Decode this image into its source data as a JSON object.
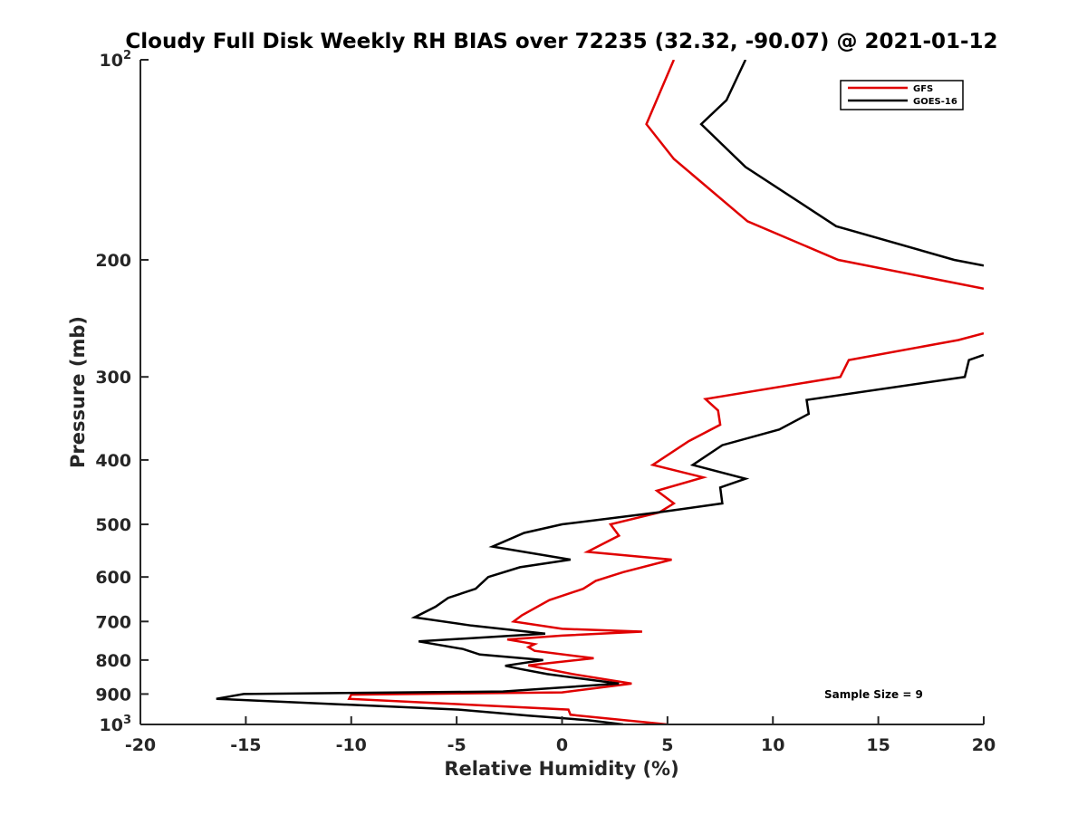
{
  "chart_data": {
    "type": "line",
    "title": "Cloudy Full Disk Weekly RH BIAS over 72235 (32.32, -90.07) @ 2021-01-12",
    "xlabel": "Relative Humidity (%)",
    "ylabel": "Pressure (mb)",
    "xlim": [
      -20,
      20
    ],
    "ylim": [
      100,
      1000
    ],
    "yscale": "log",
    "y_reversed": true,
    "grid": false,
    "x_ticks": [
      -20,
      -15,
      -10,
      -5,
      0,
      5,
      10,
      15,
      20
    ],
    "x_tick_labels": [
      "-20",
      "-15",
      "-10",
      "-5",
      "0",
      "5",
      "10",
      "15",
      "20"
    ],
    "y_ticks": [
      {
        "value": 100,
        "base": "10",
        "exp": "2"
      },
      {
        "value": 200,
        "label": "200"
      },
      {
        "value": 300,
        "label": "300"
      },
      {
        "value": 400,
        "label": "400"
      },
      {
        "value": 500,
        "label": "500"
      },
      {
        "value": 600,
        "label": "600"
      },
      {
        "value": 700,
        "label": "700"
      },
      {
        "value": 800,
        "label": "800"
      },
      {
        "value": 900,
        "label": "900"
      },
      {
        "value": 1000,
        "base": "10",
        "exp": "3"
      }
    ],
    "legend": {
      "position": "top-right",
      "entries": [
        {
          "name": "GFS",
          "color": "#e00000"
        },
        {
          "name": "GOES-16",
          "color": "#000000"
        }
      ]
    },
    "annotation": "Sample Size = 9",
    "series": [
      {
        "name": "GFS",
        "color": "#e00000",
        "points": [
          [
            5.3,
            100
          ],
          [
            4.0,
            125
          ],
          [
            5.3,
            141
          ],
          [
            8.8,
            175
          ],
          [
            13.1,
            200
          ],
          [
            20.0,
            221
          ],
          [
            null,
            null
          ],
          [
            20.0,
            258
          ],
          [
            18.8,
            264
          ],
          [
            13.6,
            283
          ],
          [
            13.2,
            300
          ],
          [
            6.8,
            324
          ],
          [
            7.4,
            337
          ],
          [
            7.5,
            354
          ],
          [
            6.0,
            375
          ],
          [
            4.3,
            407
          ],
          [
            6.7,
            425
          ],
          [
            4.5,
            445
          ],
          [
            5.3,
            465
          ],
          [
            4.6,
            480
          ],
          [
            2.3,
            500
          ],
          [
            2.7,
            520
          ],
          [
            1.2,
            550
          ],
          [
            5.2,
            565
          ],
          [
            2.9,
            590
          ],
          [
            1.6,
            608
          ],
          [
            1.0,
            625
          ],
          [
            -0.6,
            650
          ],
          [
            -1.9,
            685
          ],
          [
            -2.3,
            700
          ],
          [
            0.0,
            718
          ],
          [
            3.8,
            725
          ],
          [
            0.0,
            735
          ],
          [
            -2.6,
            745
          ],
          [
            -1.3,
            757
          ],
          [
            -1.6,
            765
          ],
          [
            -1.3,
            775
          ],
          [
            1.5,
            795
          ],
          [
            -1.6,
            815
          ],
          [
            0.5,
            840
          ],
          [
            3.3,
            868
          ],
          [
            0.0,
            895
          ],
          [
            -10.0,
            902
          ],
          [
            -10.1,
            915
          ],
          [
            0.3,
            950
          ],
          [
            0.4,
            967
          ],
          [
            5.0,
            1000
          ]
        ]
      },
      {
        "name": "GOES-16",
        "color": "#000000",
        "points": [
          [
            8.7,
            100
          ],
          [
            7.8,
            115
          ],
          [
            6.6,
            125
          ],
          [
            8.7,
            145
          ],
          [
            13.0,
            178
          ],
          [
            18.6,
            200
          ],
          [
            20.0,
            204
          ],
          [
            null,
            null
          ],
          [
            20.0,
            278
          ],
          [
            19.3,
            283
          ],
          [
            19.1,
            300
          ],
          [
            11.6,
            325
          ],
          [
            11.7,
            341
          ],
          [
            10.3,
            360
          ],
          [
            7.6,
            380
          ],
          [
            6.2,
            407
          ],
          [
            8.7,
            427
          ],
          [
            7.5,
            440
          ],
          [
            7.6,
            465
          ],
          [
            4.5,
            480
          ],
          [
            0.0,
            500
          ],
          [
            -1.8,
            515
          ],
          [
            -3.3,
            540
          ],
          [
            0.4,
            565
          ],
          [
            -2.0,
            580
          ],
          [
            -3.5,
            600
          ],
          [
            -4.1,
            625
          ],
          [
            -5.4,
            645
          ],
          [
            -6.0,
            665
          ],
          [
            -7.0,
            690
          ],
          [
            -4.3,
            710
          ],
          [
            -0.8,
            730
          ],
          [
            -6.8,
            750
          ],
          [
            -4.7,
            770
          ],
          [
            -3.9,
            785
          ],
          [
            -0.9,
            800
          ],
          [
            -2.7,
            816
          ],
          [
            -2.0,
            825
          ],
          [
            -0.7,
            840
          ],
          [
            2.7,
            868
          ],
          [
            -2.8,
            892
          ],
          [
            -15.1,
            900
          ],
          [
            -16.4,
            915
          ],
          [
            -4.9,
            950
          ],
          [
            -1.6,
            970
          ],
          [
            1.2,
            985
          ],
          [
            2.9,
            1000
          ]
        ]
      }
    ]
  }
}
